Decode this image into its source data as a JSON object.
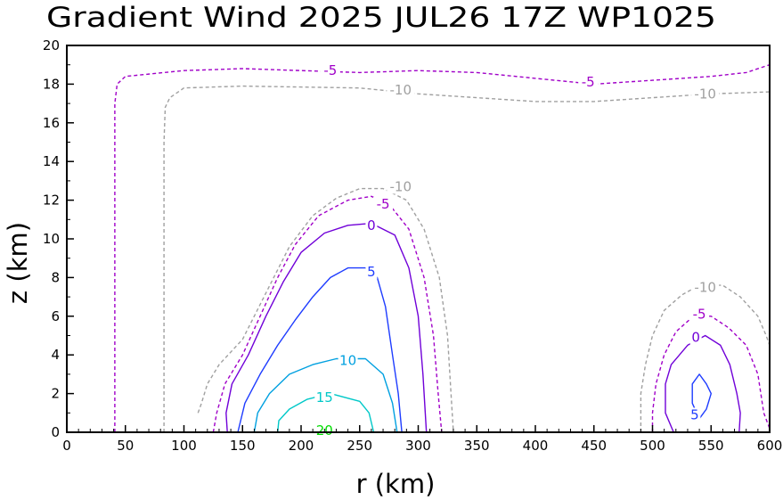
{
  "chart_data": {
    "type": "contour",
    "title": "Gradient Wind 2025 JUL26 17Z   WP1025",
    "xlabel": "r (km)",
    "ylabel": "z (km)",
    "xlim": [
      0,
      600
    ],
    "ylim": [
      0,
      20
    ],
    "xticks": [
      "0",
      "50",
      "100",
      "150",
      "200",
      "250",
      "300",
      "350",
      "400",
      "450",
      "500",
      "550",
      "600"
    ],
    "yticks": [
      "0",
      "2",
      "4",
      "6",
      "8",
      "10",
      "12",
      "14",
      "16",
      "18",
      "20"
    ],
    "levels": [
      {
        "value": -10,
        "label": "-10",
        "color": "#a0a0a0",
        "dash": true
      },
      {
        "value": -5,
        "label": "-5",
        "color": "#a000c8",
        "dash": true
      },
      {
        "value": 0,
        "label": "0",
        "color": "#7000d8",
        "dash": false
      },
      {
        "value": 5,
        "label": "5",
        "color": "#1e3cff",
        "dash": false
      },
      {
        "value": 10,
        "label": "10",
        "color": "#00a0e0",
        "dash": false
      },
      {
        "value": 15,
        "label": "15",
        "color": "#00c8c8",
        "dash": false
      },
      {
        "value": 20,
        "label": "20",
        "color": "#00dc00",
        "dash": false
      }
    ],
    "contours": [
      {
        "level": -10,
        "points": [
          [
            83,
            0
          ],
          [
            83,
            15
          ],
          [
            84,
            16.8
          ],
          [
            88,
            17.3
          ],
          [
            100,
            17.8
          ],
          [
            150,
            17.9
          ],
          [
            250,
            17.8
          ],
          [
            300,
            17.5
          ],
          [
            350,
            17.3
          ],
          [
            400,
            17.1
          ],
          [
            450,
            17.1
          ],
          [
            500,
            17.3
          ],
          [
            550,
            17.5
          ],
          [
            600,
            17.6
          ]
        ]
      },
      {
        "level": -5,
        "points": [
          [
            41,
            0
          ],
          [
            41,
            17
          ],
          [
            43,
            18
          ],
          [
            50,
            18.4
          ],
          [
            100,
            18.7
          ],
          [
            150,
            18.8
          ],
          [
            200,
            18.7
          ],
          [
            250,
            18.6
          ],
          [
            300,
            18.7
          ],
          [
            350,
            18.6
          ],
          [
            400,
            18.3
          ],
          [
            450,
            18
          ],
          [
            500,
            18.2
          ],
          [
            550,
            18.4
          ],
          [
            580,
            18.6
          ],
          [
            600,
            19
          ]
        ]
      },
      {
        "level": -10,
        "points": [
          [
            112,
            1
          ],
          [
            115,
            1.5
          ],
          [
            120,
            2.5
          ],
          [
            130,
            3.5
          ],
          [
            150,
            4.8
          ],
          [
            160,
            6
          ],
          [
            175,
            7.8
          ],
          [
            190,
            9.6
          ],
          [
            210,
            11.2
          ],
          [
            230,
            12.1
          ],
          [
            250,
            12.6
          ],
          [
            270,
            12.6
          ],
          [
            290,
            12
          ],
          [
            305,
            10.5
          ],
          [
            318,
            8
          ],
          [
            325,
            5
          ],
          [
            328,
            2
          ],
          [
            330,
            0
          ]
        ]
      },
      {
        "level": -5,
        "points": [
          [
            125,
            0
          ],
          [
            128,
            1
          ],
          [
            135,
            2.5
          ],
          [
            150,
            4
          ],
          [
            165,
            6
          ],
          [
            180,
            8
          ],
          [
            195,
            9.7
          ],
          [
            215,
            11.2
          ],
          [
            240,
            12
          ],
          [
            260,
            12.2
          ],
          [
            275,
            11.8
          ],
          [
            292,
            10.5
          ],
          [
            305,
            8
          ],
          [
            313,
            5
          ],
          [
            317,
            2
          ],
          [
            320,
            0
          ]
        ]
      },
      {
        "level": 0,
        "points": [
          [
            137,
            0
          ],
          [
            136,
            1
          ],
          [
            141,
            2.5
          ],
          [
            155,
            4
          ],
          [
            170,
            6
          ],
          [
            185,
            7.8
          ],
          [
            200,
            9.3
          ],
          [
            220,
            10.3
          ],
          [
            240,
            10.7
          ],
          [
            260,
            10.8
          ],
          [
            280,
            10.2
          ],
          [
            292,
            8.5
          ],
          [
            300,
            6
          ],
          [
            304,
            3
          ],
          [
            306,
            1
          ],
          [
            307,
            0
          ]
        ]
      },
      {
        "level": 5,
        "points": [
          [
            146,
            0
          ],
          [
            152,
            1.5
          ],
          [
            165,
            3
          ],
          [
            180,
            4.5
          ],
          [
            195,
            5.8
          ],
          [
            210,
            7
          ],
          [
            225,
            8
          ],
          [
            240,
            8.5
          ],
          [
            255,
            8.5
          ],
          [
            265,
            8
          ],
          [
            272,
            6.5
          ],
          [
            278,
            4
          ],
          [
            283,
            2
          ],
          [
            286,
            0
          ]
        ]
      },
      {
        "level": 10,
        "points": [
          [
            160,
            0
          ],
          [
            163,
            1
          ],
          [
            173,
            2
          ],
          [
            190,
            3
          ],
          [
            210,
            3.5
          ],
          [
            230,
            3.8
          ],
          [
            255,
            3.8
          ],
          [
            270,
            3
          ],
          [
            278,
            1.5
          ],
          [
            282,
            0
          ]
        ]
      },
      {
        "level": 15,
        "points": [
          [
            180,
            0
          ],
          [
            181,
            0.6
          ],
          [
            190,
            1.2
          ],
          [
            205,
            1.7
          ],
          [
            225,
            2
          ],
          [
            250,
            1.6
          ],
          [
            258,
            1
          ],
          [
            262,
            0
          ]
        ]
      },
      {
        "level": -10,
        "points": [
          [
            490,
            0
          ],
          [
            490,
            2
          ],
          [
            494,
            3.5
          ],
          [
            500,
            5
          ],
          [
            510,
            6.3
          ],
          [
            525,
            7.1
          ],
          [
            540,
            7.6
          ],
          [
            560,
            7.6
          ],
          [
            575,
            7
          ],
          [
            590,
            6
          ],
          [
            597,
            5
          ],
          [
            600,
            4.5
          ]
        ]
      },
      {
        "level": -5,
        "points": [
          [
            500,
            0
          ],
          [
            500,
            1
          ],
          [
            503,
            2.5
          ],
          [
            510,
            4
          ],
          [
            520,
            5.2
          ],
          [
            535,
            6
          ],
          [
            550,
            6
          ],
          [
            565,
            5.4
          ],
          [
            580,
            4.5
          ],
          [
            590,
            3
          ],
          [
            595,
            1
          ],
          [
            600,
            0.2
          ]
        ]
      },
      {
        "level": 0,
        "points": [
          [
            518,
            0
          ],
          [
            511,
            1
          ],
          [
            511,
            2.5
          ],
          [
            516,
            3.5
          ],
          [
            530,
            4.5
          ],
          [
            545,
            5
          ],
          [
            558,
            4.5
          ],
          [
            566,
            3.5
          ],
          [
            572,
            2
          ],
          [
            575,
            1
          ],
          [
            574,
            0
          ]
        ]
      },
      {
        "level": 5,
        "points": [
          [
            540,
            0.7
          ],
          [
            534,
            1.5
          ],
          [
            534,
            2.5
          ],
          [
            540,
            3
          ],
          [
            546,
            2.5
          ],
          [
            550,
            2
          ],
          [
            546,
            1.2
          ],
          [
            540,
            0.7
          ]
        ]
      }
    ],
    "contour_labels": [
      {
        "text": "-5",
        "x": 225,
        "y": 18.7
      },
      {
        "text": "-10",
        "x": 285,
        "y": 17.7
      },
      {
        "text": "-5",
        "x": 445,
        "y": 18.1
      },
      {
        "text": "-10",
        "x": 545,
        "y": 17.5
      },
      {
        "text": "-10",
        "x": 285,
        "y": 12.7
      },
      {
        "text": "-5",
        "x": 270,
        "y": 11.8
      },
      {
        "text": "0",
        "x": 260,
        "y": 10.7
      },
      {
        "text": "5",
        "x": 260,
        "y": 8.3
      },
      {
        "text": "10",
        "x": 240,
        "y": 3.7
      },
      {
        "text": "15",
        "x": 220,
        "y": 1.8
      },
      {
        "text": "20",
        "x": 220,
        "y": 0.1
      },
      {
        "text": "-10",
        "x": 545,
        "y": 7.5
      },
      {
        "text": "-5",
        "x": 540,
        "y": 6.1
      },
      {
        "text": "0",
        "x": 537,
        "y": 4.9
      },
      {
        "text": "5",
        "x": 536,
        "y": 0.9
      }
    ]
  }
}
